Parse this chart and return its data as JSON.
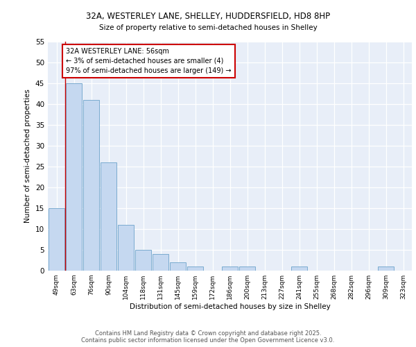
{
  "title_line1": "32A, WESTERLEY LANE, SHELLEY, HUDDERSFIELD, HD8 8HP",
  "title_line2": "Size of property relative to semi-detached houses in Shelley",
  "xlabel": "Distribution of semi-detached houses by size in Shelley",
  "ylabel": "Number of semi-detached properties",
  "categories": [
    "49sqm",
    "63sqm",
    "76sqm",
    "90sqm",
    "104sqm",
    "118sqm",
    "131sqm",
    "145sqm",
    "159sqm",
    "172sqm",
    "186sqm",
    "200sqm",
    "213sqm",
    "227sqm",
    "241sqm",
    "255sqm",
    "268sqm",
    "282sqm",
    "296sqm",
    "309sqm",
    "323sqm"
  ],
  "values": [
    15,
    45,
    41,
    26,
    11,
    5,
    4,
    2,
    1,
    0,
    1,
    1,
    0,
    0,
    1,
    0,
    0,
    0,
    0,
    1,
    0
  ],
  "bar_color": "#c5d8f0",
  "bar_edge_color": "#7aabcf",
  "background_color": "#e8eef8",
  "annotation_text": "32A WESTERLEY LANE: 56sqm\n← 3% of semi-detached houses are smaller (4)\n97% of semi-detached houses are larger (149) →",
  "annotation_box_color": "#ffffff",
  "annotation_box_edge": "#cc0000",
  "vline_color": "#cc0000",
  "ylim": [
    0,
    55
  ],
  "yticks": [
    0,
    5,
    10,
    15,
    20,
    25,
    30,
    35,
    40,
    45,
    50,
    55
  ],
  "footer_line1": "Contains HM Land Registry data © Crown copyright and database right 2025.",
  "footer_line2": "Contains public sector information licensed under the Open Government Licence v3.0."
}
